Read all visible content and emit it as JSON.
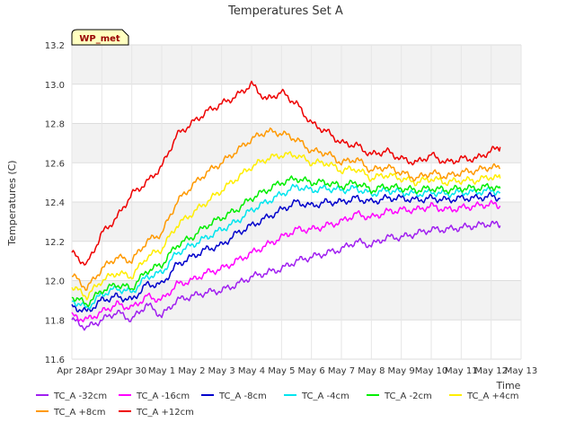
{
  "chart_data": {
    "type": "line",
    "title": "Temperatures Set A",
    "xlabel": "Time",
    "ylabel": "Temperatures (C)",
    "station_badge": "WP_met",
    "xlim": [
      0,
      15
    ],
    "ylim": [
      11.6,
      13.2
    ],
    "x_ticks": [
      {
        "value": 0,
        "label": "Apr 28"
      },
      {
        "value": 1,
        "label": "Apr 29"
      },
      {
        "value": 2,
        "label": "Apr 30"
      },
      {
        "value": 3,
        "label": "May 1"
      },
      {
        "value": 4,
        "label": "May 2"
      },
      {
        "value": 5,
        "label": "May 3"
      },
      {
        "value": 6,
        "label": "May 4"
      },
      {
        "value": 7,
        "label": "May 5"
      },
      {
        "value": 8,
        "label": "May 6"
      },
      {
        "value": 9,
        "label": "May 7"
      },
      {
        "value": 10,
        "label": "May 8"
      },
      {
        "value": 11,
        "label": "May 9"
      },
      {
        "value": 12,
        "label": "May 10"
      },
      {
        "value": 13,
        "label": "May 11"
      },
      {
        "value": 14,
        "label": "May 12"
      },
      {
        "value": 15,
        "label": "May 13"
      }
    ],
    "y_ticks": [
      "11.6",
      "11.8",
      "12.0",
      "12.2",
      "12.4",
      "12.6",
      "12.8",
      "13.0",
      "13.2"
    ],
    "x": [
      0,
      0.5,
      1,
      1.5,
      2,
      2.5,
      3,
      3.5,
      4,
      4.5,
      5,
      5.5,
      6,
      6.5,
      7,
      7.5,
      8,
      8.5,
      9,
      9.5,
      10,
      10.5,
      11,
      11.5,
      12,
      12.5,
      13,
      13.5,
      14,
      14.3
    ],
    "series": [
      {
        "name": "TC_A -32cm",
        "color": "#a020f0",
        "values": [
          11.8,
          11.76,
          11.8,
          11.84,
          11.8,
          11.88,
          11.82,
          11.9,
          11.92,
          11.94,
          11.95,
          11.98,
          12.02,
          12.04,
          12.06,
          12.1,
          12.12,
          12.14,
          12.16,
          12.2,
          12.18,
          12.22,
          12.22,
          12.24,
          12.26,
          12.26,
          12.27,
          12.28,
          12.29,
          12.28
        ]
      },
      {
        "name": "TC_A -16cm",
        "color": "#ff00ff",
        "values": [
          11.82,
          11.8,
          11.84,
          11.88,
          11.86,
          11.92,
          11.9,
          11.98,
          12.0,
          12.04,
          12.06,
          12.1,
          12.14,
          12.18,
          12.22,
          12.26,
          12.26,
          12.28,
          12.3,
          12.34,
          12.32,
          12.35,
          12.36,
          12.36,
          12.38,
          12.36,
          12.37,
          12.38,
          12.39,
          12.38
        ]
      },
      {
        "name": "TC_A -8cm",
        "color": "#0000cc",
        "values": [
          11.87,
          11.84,
          11.9,
          11.92,
          11.9,
          11.98,
          11.98,
          12.08,
          12.12,
          12.16,
          12.18,
          12.24,
          12.28,
          12.32,
          12.36,
          12.4,
          12.38,
          12.4,
          12.4,
          12.42,
          12.4,
          12.42,
          12.42,
          12.41,
          12.42,
          12.41,
          12.42,
          12.42,
          12.43,
          12.42
        ]
      },
      {
        "name": "TC_A -4cm",
        "color": "#00e5ee",
        "values": [
          11.9,
          11.86,
          11.93,
          11.96,
          11.94,
          12.02,
          12.04,
          12.14,
          12.18,
          12.22,
          12.26,
          12.3,
          12.36,
          12.4,
          12.44,
          12.48,
          12.46,
          12.47,
          12.46,
          12.47,
          12.44,
          12.46,
          12.45,
          12.44,
          12.45,
          12.44,
          12.45,
          12.45,
          12.46,
          12.45
        ]
      },
      {
        "name": "TC_A -2cm",
        "color": "#00ee00",
        "values": [
          11.92,
          11.88,
          11.95,
          11.98,
          11.96,
          12.05,
          12.08,
          12.18,
          12.22,
          12.28,
          12.32,
          12.36,
          12.42,
          12.46,
          12.5,
          12.52,
          12.5,
          12.5,
          12.48,
          12.5,
          12.46,
          12.48,
          12.47,
          12.46,
          12.47,
          12.46,
          12.47,
          12.47,
          12.48,
          12.47
        ]
      },
      {
        "name": "TC_A +4cm",
        "color": "#ffee00",
        "values": [
          11.97,
          11.92,
          12.0,
          12.04,
          12.02,
          12.12,
          12.16,
          12.28,
          12.34,
          12.4,
          12.46,
          12.52,
          12.58,
          12.62,
          12.64,
          12.64,
          12.6,
          12.6,
          12.56,
          12.57,
          12.52,
          12.54,
          12.52,
          12.5,
          12.52,
          12.5,
          12.51,
          12.51,
          12.53,
          12.52
        ]
      },
      {
        "name": "TC_A +8cm",
        "color": "#ff9900",
        "values": [
          12.03,
          11.96,
          12.06,
          12.12,
          12.1,
          12.2,
          12.24,
          12.4,
          12.48,
          12.55,
          12.6,
          12.66,
          12.72,
          12.76,
          12.75,
          12.72,
          12.66,
          12.65,
          12.6,
          12.62,
          12.56,
          12.58,
          12.55,
          12.52,
          12.55,
          12.53,
          12.55,
          12.56,
          12.58,
          12.57
        ]
      },
      {
        "name": "TC_A +12cm",
        "color": "#ee0000",
        "values": [
          12.14,
          12.08,
          12.24,
          12.32,
          12.44,
          12.5,
          12.58,
          12.74,
          12.8,
          12.86,
          12.9,
          12.94,
          13.0,
          12.92,
          12.96,
          12.9,
          12.8,
          12.76,
          12.7,
          12.69,
          12.64,
          12.66,
          12.62,
          12.6,
          12.64,
          12.6,
          12.62,
          12.62,
          12.66,
          12.68
        ]
      }
    ]
  }
}
